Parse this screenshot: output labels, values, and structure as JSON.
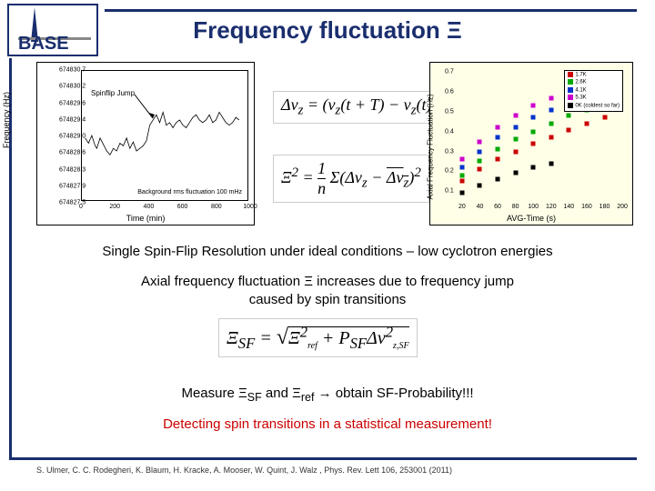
{
  "title": "Frequency fluctuation Ξ",
  "logo": {
    "text": "BASE"
  },
  "chart1": {
    "type": "line",
    "ylabel": "Frequency (Hz)",
    "xlabel": "Time (min)",
    "yticks": [
      "674830.7",
      "674830.2",
      "674829.6",
      "674829.4",
      "674829.0",
      "674828.6",
      "674828.3",
      "674827.9",
      "674827.5"
    ],
    "xticks": [
      "0",
      "200",
      "400",
      "600",
      "800",
      "1000"
    ],
    "annot_spinflip": "Spinflip Jump",
    "annot_bg": "Background rms fluctuation\n100 mHz",
    "data_x": [
      20,
      40,
      60,
      80,
      90,
      110,
      130,
      150,
      170,
      190,
      210,
      230,
      250,
      270,
      290,
      310,
      330,
      350,
      370,
      390,
      410,
      430,
      450,
      470,
      490,
      510,
      530,
      550,
      570,
      590,
      610,
      630,
      650,
      670,
      690,
      710,
      730,
      750,
      770,
      790,
      810,
      830,
      850,
      870,
      890,
      910,
      930,
      950
    ],
    "data_y": [
      0.48,
      0.44,
      0.5,
      0.42,
      0.4,
      0.48,
      0.43,
      0.38,
      0.35,
      0.4,
      0.38,
      0.44,
      0.42,
      0.48,
      0.4,
      0.45,
      0.38,
      0.4,
      0.42,
      0.46,
      0.58,
      0.62,
      0.66,
      0.6,
      0.68,
      0.58,
      0.6,
      0.56,
      0.6,
      0.62,
      0.58,
      0.56,
      0.6,
      0.64,
      0.66,
      0.62,
      0.6,
      0.62,
      0.66,
      0.6,
      0.62,
      0.68,
      0.64,
      0.6,
      0.58,
      0.6,
      0.64,
      0.62
    ]
  },
  "chart2": {
    "type": "scatter",
    "ylabel": "Axial Frequency Fluctuation (Hz)",
    "xlabel": "AVG-Time (s)",
    "yticks": [
      "0.1",
      "0.2",
      "0.3",
      "0.4",
      "0.5",
      "0.6",
      "0.7"
    ],
    "xticks": [
      "20",
      "40",
      "60",
      "80",
      "100",
      "120",
      "140",
      "160",
      "180",
      "200"
    ],
    "legend": [
      {
        "label": "1.7K",
        "color": "#cc0000"
      },
      {
        "label": "2.6K",
        "color": "#00aa00"
      },
      {
        "label": "4.1K",
        "color": "#0033cc"
      },
      {
        "label": "5.3K",
        "color": "#cc00cc"
      },
      {
        "label": "0K (coldest so far)",
        "color": "#000000"
      }
    ],
    "series": [
      {
        "color": "#cc0000",
        "points": [
          [
            20,
            0.15
          ],
          [
            40,
            0.21
          ],
          [
            60,
            0.26
          ],
          [
            80,
            0.3
          ],
          [
            100,
            0.34
          ],
          [
            120,
            0.37
          ],
          [
            140,
            0.41
          ],
          [
            160,
            0.44
          ],
          [
            180,
            0.47
          ]
        ]
      },
      {
        "color": "#00aa00",
        "points": [
          [
            20,
            0.18
          ],
          [
            40,
            0.25
          ],
          [
            60,
            0.31
          ],
          [
            80,
            0.36
          ],
          [
            100,
            0.4
          ],
          [
            120,
            0.44
          ],
          [
            140,
            0.48
          ],
          [
            160,
            0.51
          ],
          [
            180,
            0.54
          ]
        ]
      },
      {
        "color": "#0033cc",
        "points": [
          [
            20,
            0.22
          ],
          [
            40,
            0.3
          ],
          [
            60,
            0.37
          ],
          [
            80,
            0.42
          ],
          [
            100,
            0.47
          ],
          [
            120,
            0.51
          ],
          [
            140,
            0.55
          ],
          [
            160,
            0.58
          ],
          [
            180,
            0.61
          ]
        ]
      },
      {
        "color": "#cc00cc",
        "points": [
          [
            20,
            0.26
          ],
          [
            40,
            0.35
          ],
          [
            60,
            0.42
          ],
          [
            80,
            0.48
          ],
          [
            100,
            0.53
          ],
          [
            120,
            0.57
          ],
          [
            140,
            0.61
          ],
          [
            160,
            0.65
          ],
          [
            180,
            0.68
          ]
        ]
      },
      {
        "color": "#000000",
        "points": [
          [
            20,
            0.09
          ],
          [
            40,
            0.13
          ],
          [
            60,
            0.16
          ],
          [
            80,
            0.19
          ],
          [
            100,
            0.22
          ],
          [
            120,
            0.24
          ]
        ]
      }
    ]
  },
  "eq1": "Δν<sub>z</sub> = (ν<sub>z</sub>(t + T) − ν<sub>z</sub>(t))",
  "eq2": "Ξ<sup>2</sup> = <span style='display:inline-block;vertical-align:middle;'><span style='display:block;border-bottom:1px solid #000;text-align:center;'>1</span><span style='display:block;text-align:center;'>n</span></span> Σ(Δν<sub>z</sub> − <span style='text-decoration:overline;'>Δν<sub>z</sub></span>)<sup>2</sup>",
  "eq3": "Ξ<sub>SF</sub> = <span style='font-size:24px;'>&radic;</span><span style='border-top:1px solid #000;padding-top:1px;'>Ξ<sup>2</sup><sub style='font-size:10px;'>ref</sub> + P<sub>SF</sub>Δν<sup>2</sup><sub style='font-size:10px;'>z,SF</sub></span>",
  "text1": "Single Spin-Flip Resolution under ideal conditions – low cyclotron energies",
  "text2": "Axial frequency fluctuation Ξ increases due to frequency jump<br/>caused by spin transitions",
  "text3": "Measure Ξ<sub>SF</sub> and Ξ<sub>ref</sub> → obtain SF-Probability!!!",
  "text4": "Detecting spin transitions in a statistical measurement!",
  "citation": "S. Ulmer, C. C. Rodegheri, K. Blaum, H. Kracke, A. Mooser, W. Quint, J. Walz , Phys. Rev. Lett 106, 253001 (2011)"
}
